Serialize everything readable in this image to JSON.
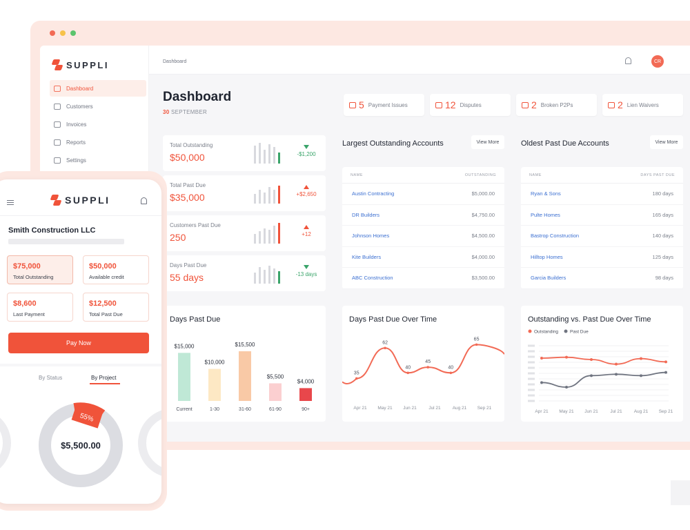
{
  "app": {
    "name": "SUPPLI"
  },
  "sidebar": {
    "items": [
      {
        "label": "Dashboard",
        "active": true,
        "icon": "dashboard-icon"
      },
      {
        "label": "Customers",
        "active": false,
        "icon": "users-icon"
      },
      {
        "label": "Invoices",
        "active": false,
        "icon": "invoice-icon"
      },
      {
        "label": "Reports",
        "active": false,
        "icon": "reports-icon"
      },
      {
        "label": "Settings",
        "active": false,
        "icon": "settings-icon"
      }
    ]
  },
  "topbar": {
    "breadcrumb": "Dashboard",
    "avatar": "CR"
  },
  "header": {
    "title": "Dashboard",
    "date_day": "30",
    "date_month": "SEPTEMBER"
  },
  "issues": [
    {
      "count": "5",
      "label": "Payment Issues",
      "icon": "payment-icon"
    },
    {
      "count": "12",
      "label": "Disputes",
      "icon": "chat-icon"
    },
    {
      "count": "2",
      "label": "Broken P2Ps",
      "icon": "warning-icon"
    },
    {
      "count": "2",
      "label": "Lien Waivers",
      "icon": "briefcase-icon"
    }
  ],
  "kpis": [
    {
      "label": "Total Outstanding",
      "value": "$50,000",
      "delta": "-$1,200",
      "trend": "down"
    },
    {
      "label": "Total Past Due",
      "value": "$35,000",
      "delta": "+$2,650",
      "trend": "up"
    },
    {
      "label": "Customers Past Due",
      "value": "250",
      "delta": "+12",
      "trend": "up"
    },
    {
      "label": "Days Past Due",
      "value": "55 days",
      "delta": "-13 days",
      "trend": "down"
    }
  ],
  "largest_accounts": {
    "title": "Largest Outstanding Accounts",
    "view_more": "View More",
    "col_name": "NAME",
    "col_value": "OUTSTANDING",
    "rows": [
      {
        "name": "Austin Contracting",
        "value": "$5,000.00"
      },
      {
        "name": "DR Builders",
        "value": "$4,750.00"
      },
      {
        "name": "Johnson Homes",
        "value": "$4,500.00"
      },
      {
        "name": "Kite Builders",
        "value": "$4,000.00"
      },
      {
        "name": "ABC Construction",
        "value": "$3,500.00"
      }
    ]
  },
  "oldest_accounts": {
    "title": "Oldest Past Due Accounts",
    "view_more": "View More",
    "col_name": "NAME",
    "col_value": "DAYS PAST DUE",
    "rows": [
      {
        "name": "Ryan & Sons",
        "value": "180 days"
      },
      {
        "name": "Pulte Homes",
        "value": "165 days"
      },
      {
        "name": "Bastrop Construction",
        "value": "140 days"
      },
      {
        "name": "Hilltop Homes",
        "value": "125 days"
      },
      {
        "name": "Garcia Builders",
        "value": "98 days"
      }
    ]
  },
  "chart_data": [
    {
      "type": "bar",
      "title": "Days Past Due",
      "categories": [
        "Current",
        "1-30",
        "31-60",
        "61-90",
        "90+"
      ],
      "values": [
        15000,
        10000,
        15500,
        5500,
        4000
      ],
      "value_labels": [
        "$15,000",
        "$10,000",
        "$15,500",
        "$5,500",
        "$4,000"
      ],
      "colors": [
        "#bfe8d6",
        "#fde8c4",
        "#f9c9a6",
        "#fbcfd0",
        "#e8474b"
      ]
    },
    {
      "type": "line",
      "title": "Days Past Due Over Time",
      "x": [
        "Apr 21",
        "May 21",
        "Jun 21",
        "Jul 21",
        "Aug 21",
        "Sep 21"
      ],
      "point_x": [
        0.5,
        1.5,
        2.3,
        3.0,
        3.8,
        4.7
      ],
      "series": [
        {
          "values": [
            35,
            62,
            40,
            45,
            40,
            65
          ],
          "color": "#f26a55"
        }
      ],
      "point_labels": [
        "35",
        "62",
        "40",
        "45",
        "40",
        "65"
      ],
      "ylim": [
        20,
        75
      ]
    },
    {
      "type": "line",
      "title": "Outstanding vs. Past Due Over Time",
      "x": [
        "Apr 21",
        "May 21",
        "Jun 21",
        "Jul 21",
        "Aug 21",
        "Sep 21"
      ],
      "series": [
        {
          "name": "Outstanding",
          "color": "#f26a55",
          "values": [
            93,
            95,
            90,
            80,
            92,
            85
          ]
        },
        {
          "name": "Past Due",
          "color": "#6f7480",
          "values": [
            40,
            30,
            55,
            58,
            55,
            62
          ]
        }
      ],
      "ylim": [
        0,
        120
      ],
      "yticks_count": 10
    }
  ],
  "mobile": {
    "app_name": "SUPPLI",
    "company": "Smith Construction LLC",
    "cards": [
      {
        "value": "$75,000",
        "label": "Total Outstanding",
        "highlight": true
      },
      {
        "value": "$50,000",
        "label": "Available credit",
        "highlight": false
      },
      {
        "value": "$8,600",
        "label": "Last Payment",
        "highlight": false
      },
      {
        "value": "$12,500",
        "label": "Total Past Due",
        "highlight": false
      }
    ],
    "pay_button": "Pay Now",
    "tabs": [
      {
        "label": "By Status",
        "active": false
      },
      {
        "label": "By Project",
        "active": true
      }
    ],
    "donut": {
      "value": "$5,500.00",
      "percent_label": "55%"
    }
  }
}
